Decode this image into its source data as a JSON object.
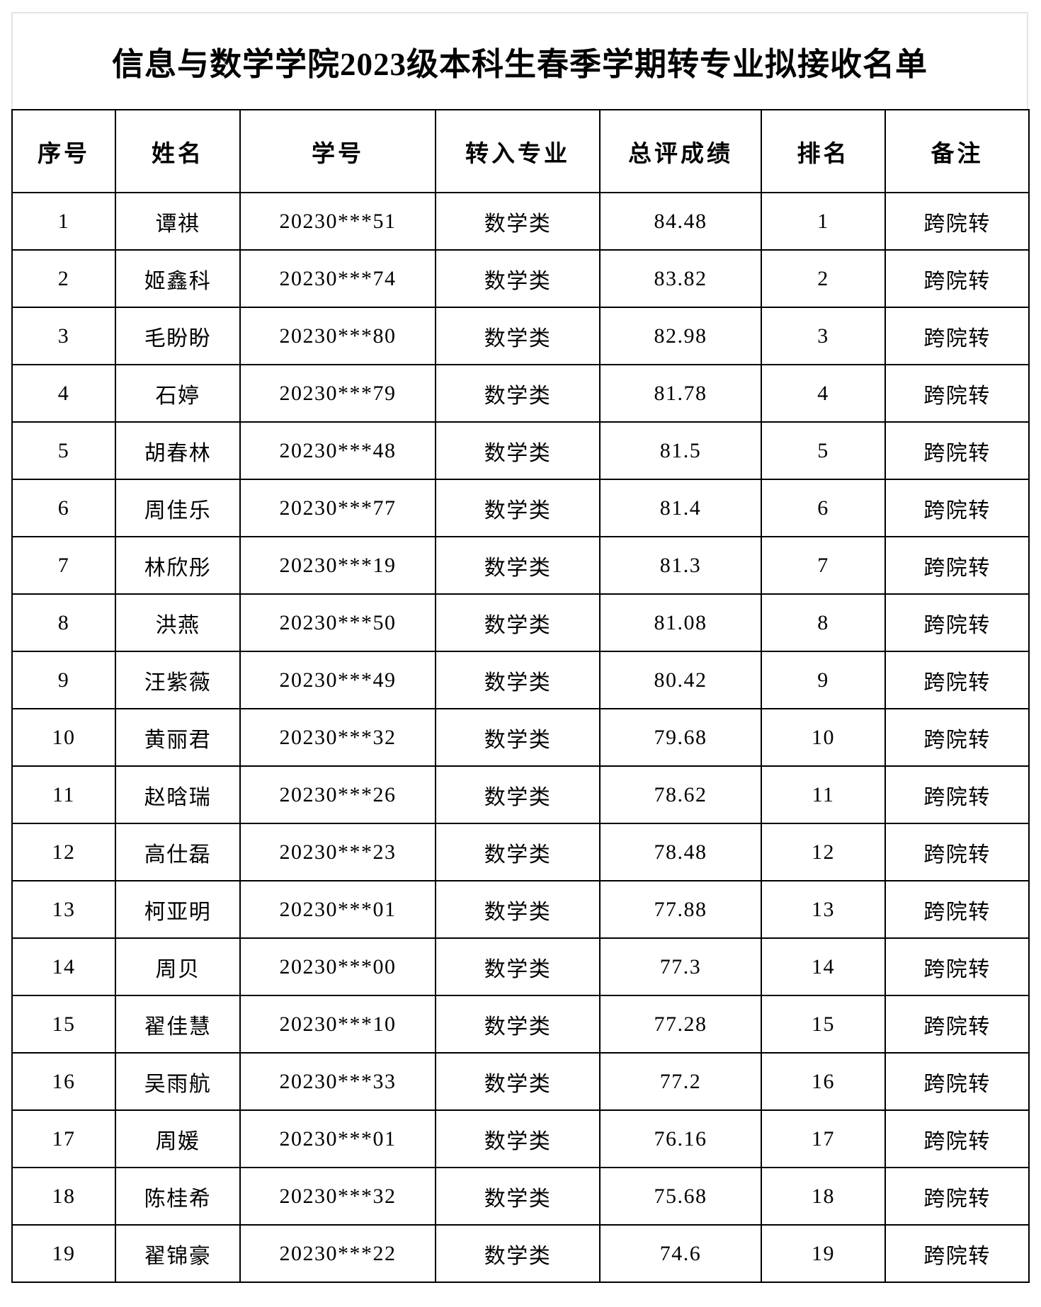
{
  "title": "信息与数学学院2023级本科生春季学期转专业拟接收名单",
  "columns": [
    "序号",
    "姓名",
    "学号",
    "转入专业",
    "总评成绩",
    "排名",
    "备注"
  ],
  "rows": [
    [
      "1",
      "谭祺",
      "20230***51",
      "数学类",
      "84.48",
      "1",
      "跨院转"
    ],
    [
      "2",
      "姬鑫科",
      "20230***74",
      "数学类",
      "83.82",
      "2",
      "跨院转"
    ],
    [
      "3",
      "毛盼盼",
      "20230***80",
      "数学类",
      "82.98",
      "3",
      "跨院转"
    ],
    [
      "4",
      "石婷",
      "20230***79",
      "数学类",
      "81.78",
      "4",
      "跨院转"
    ],
    [
      "5",
      "胡春林",
      "20230***48",
      "数学类",
      "81.5",
      "5",
      "跨院转"
    ],
    [
      "6",
      "周佳乐",
      "20230***77",
      "数学类",
      "81.4",
      "6",
      "跨院转"
    ],
    [
      "7",
      "林欣彤",
      "20230***19",
      "数学类",
      "81.3",
      "7",
      "跨院转"
    ],
    [
      "8",
      "洪燕",
      "20230***50",
      "数学类",
      "81.08",
      "8",
      "跨院转"
    ],
    [
      "9",
      "汪紫薇",
      "20230***49",
      "数学类",
      "80.42",
      "9",
      "跨院转"
    ],
    [
      "10",
      "黄丽君",
      "20230***32",
      "数学类",
      "79.68",
      "10",
      "跨院转"
    ],
    [
      "11",
      "赵晗瑞",
      "20230***26",
      "数学类",
      "78.62",
      "11",
      "跨院转"
    ],
    [
      "12",
      "高仕磊",
      "20230***23",
      "数学类",
      "78.48",
      "12",
      "跨院转"
    ],
    [
      "13",
      "柯亚明",
      "20230***01",
      "数学类",
      "77.88",
      "13",
      "跨院转"
    ],
    [
      "14",
      "周贝",
      "20230***00",
      "数学类",
      "77.3",
      "14",
      "跨院转"
    ],
    [
      "15",
      "翟佳慧",
      "20230***10",
      "数学类",
      "77.28",
      "15",
      "跨院转"
    ],
    [
      "16",
      "吴雨航",
      "20230***33",
      "数学类",
      "77.2",
      "16",
      "跨院转"
    ],
    [
      "17",
      "周媛",
      "20230***01",
      "数学类",
      "76.16",
      "17",
      "跨院转"
    ],
    [
      "18",
      "陈桂希",
      "20230***32",
      "数学类",
      "75.68",
      "18",
      "跨院转"
    ],
    [
      "19",
      "翟锦豪",
      "20230***22",
      "数学类",
      "74.6",
      "19",
      "跨院转"
    ]
  ]
}
